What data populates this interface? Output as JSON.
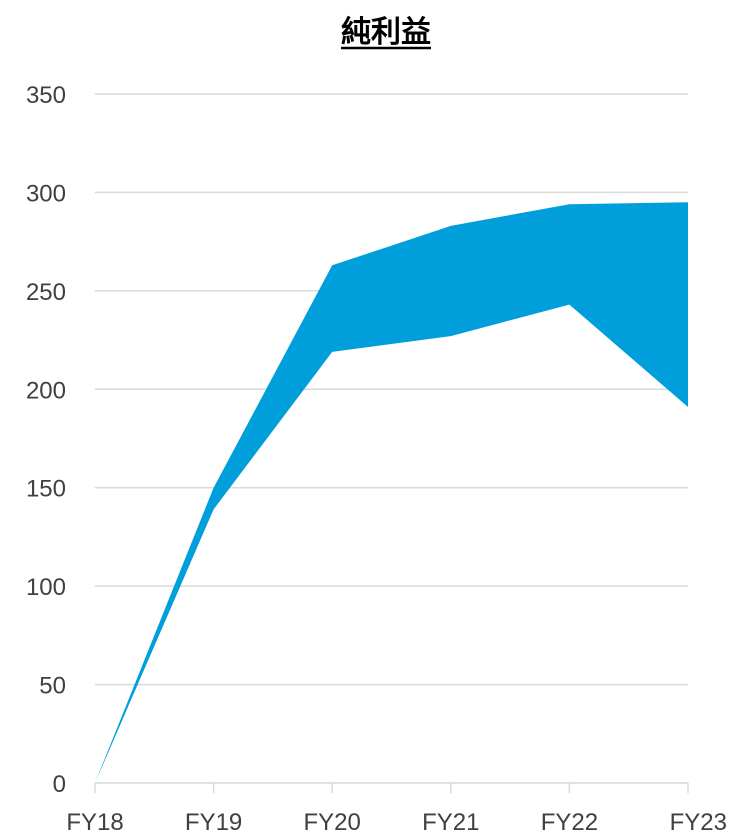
{
  "chart_data": {
    "type": "area",
    "title": "純利益",
    "categories": [
      "FY18",
      "FY19",
      "FY20",
      "FY21",
      "FY22",
      "FY23"
    ],
    "series": [
      {
        "values": [
          0,
          139,
          219,
          227,
          243,
          191
        ]
      },
      {
        "values": [
          0,
          150,
          263,
          283,
          294,
          295
        ]
      }
    ],
    "yticks": [
      0,
      50,
      100,
      150,
      200,
      250,
      300,
      350
    ],
    "ylim": [
      0,
      350
    ],
    "grid": true,
    "colors": {
      "band": "#009fdb",
      "grid": "#d9d9d9",
      "tick_text": "#404040"
    }
  }
}
